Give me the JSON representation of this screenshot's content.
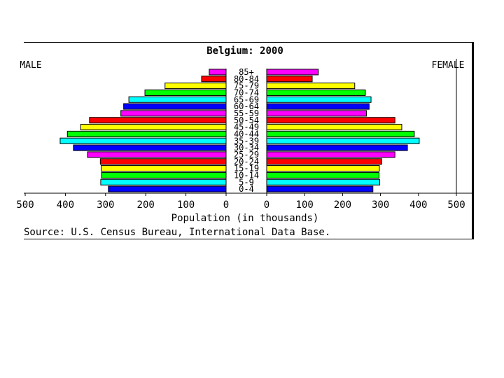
{
  "chart_data": {
    "type": "bar",
    "title": "Belgium: 2000",
    "left_label": "MALE",
    "right_label": "FEMALE",
    "xlabel": "Population (in thousands)",
    "source": "Source: U.S. Census Bureau, International Data Base.",
    "xlim": [
      0,
      500
    ],
    "xticks": [
      "500",
      "400",
      "300",
      "200",
      "100",
      "0",
      "0",
      "100",
      "200",
      "300",
      "400",
      "500"
    ],
    "categories": [
      "0-4",
      "5-9",
      "10-14",
      "15-19",
      "20-24",
      "25-29",
      "30-34",
      "35-39",
      "40-44",
      "45-49",
      "50-54",
      "55-59",
      "60-64",
      "65-69",
      "70-74",
      "75-79",
      "80-84",
      "85+"
    ],
    "colors": [
      "#0000ff",
      "#00ffff",
      "#00ff00",
      "#ffff00",
      "#ff0000",
      "#ff00ff",
      "#0000ff",
      "#00ffff",
      "#00ff00",
      "#ffff00",
      "#ff0000",
      "#ff00ff",
      "#0000ff",
      "#00ffff",
      "#00ff00",
      "#ffff00",
      "#ff0000",
      "#ff00ff"
    ],
    "series": [
      {
        "name": "MALE",
        "values": [
          293,
          312,
          310,
          311,
          313,
          345,
          380,
          413,
          395,
          362,
          340,
          262,
          255,
          242,
          202,
          152,
          61,
          42
        ]
      },
      {
        "name": "FEMALE",
        "values": [
          280,
          298,
          296,
          297,
          303,
          338,
          371,
          402,
          389,
          356,
          338,
          263,
          270,
          275,
          260,
          232,
          120,
          136
        ]
      }
    ]
  }
}
